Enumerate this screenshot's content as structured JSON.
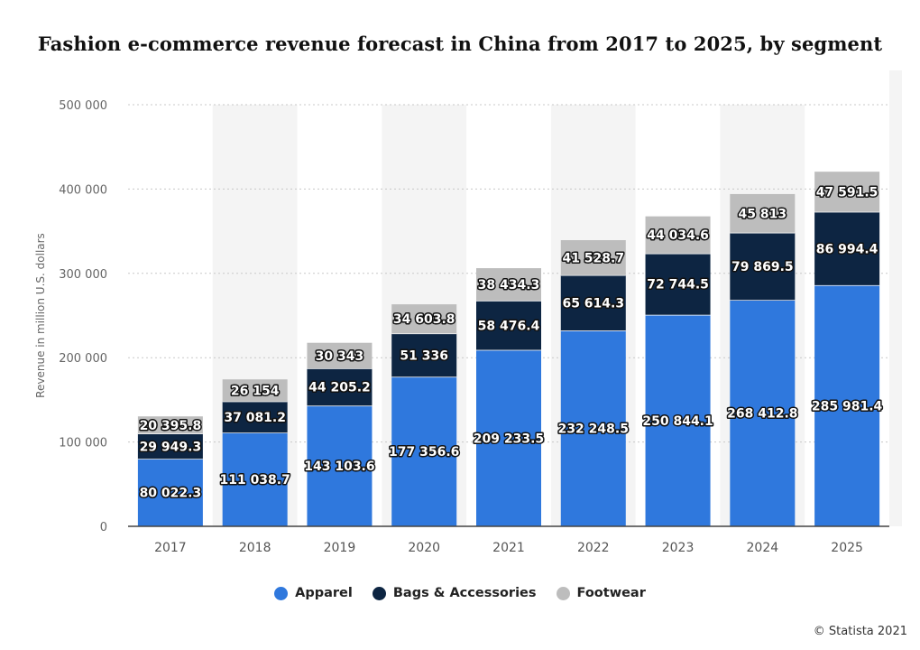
{
  "chart_data": {
    "type": "bar",
    "stacked": true,
    "title": "Fashion e-commerce revenue forecast in China from 2017 to 2025, by segment",
    "ylabel": "Revenue in million U.S. dollars",
    "xlabel": "",
    "ylim": [
      0,
      500000
    ],
    "yticks": [
      0,
      100000,
      200000,
      300000,
      400000,
      500000
    ],
    "ytick_labels": [
      "0",
      "100 000",
      "200 000",
      "300 000",
      "400 000",
      "500 000"
    ],
    "grid": true,
    "legend_position": "bottom",
    "categories": [
      "2017",
      "2018",
      "2019",
      "2020",
      "2021",
      "2022",
      "2023",
      "2024",
      "2025"
    ],
    "series": [
      {
        "name": "Apparel",
        "color": "#2f78dd",
        "values": [
          80022.3,
          111038.7,
          143103.6,
          177356.6,
          209233.5,
          232248.5,
          250844.1,
          268412.8,
          285981.4
        ],
        "labels": [
          "80 022.3",
          "111 038.7",
          "143 103.6",
          "177 356.6",
          "209 233.5",
          "232 248.5",
          "250 844.1",
          "268 412.8",
          "285 981.4"
        ]
      },
      {
        "name": "Bags & Accessories",
        "color": "#0d2542",
        "values": [
          29949.3,
          37081.2,
          44205.2,
          51336,
          58476.4,
          65614.3,
          72744.5,
          79869.5,
          86994.4
        ],
        "labels": [
          "29 949.3",
          "37 081.2",
          "44 205.2",
          "51 336",
          "58 476.4",
          "65 614.3",
          "72 744.5",
          "79 869.5",
          "86 994.4"
        ]
      },
      {
        "name": "Footwear",
        "color": "#bdbdbd",
        "values": [
          20395.8,
          26154,
          30343,
          34603.8,
          38434.3,
          41528.7,
          44034.6,
          45813,
          47591.5
        ],
        "labels": [
          "20 395.8",
          "26 154",
          "30 343",
          "34 603.8",
          "38 434.3",
          "41 528.7",
          "44 034.6",
          "45 813",
          "47 591.5"
        ]
      }
    ]
  },
  "credit": "© Statista 2021"
}
